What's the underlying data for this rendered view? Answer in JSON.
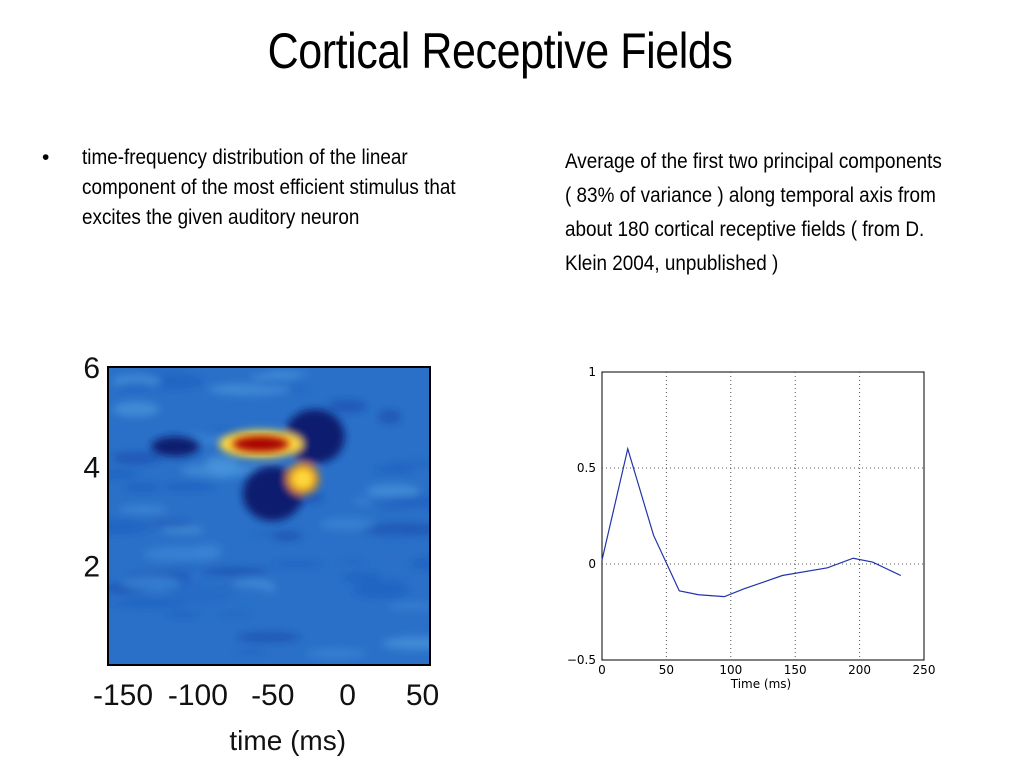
{
  "slide": {
    "title": "Cortical Receptive Fields",
    "bullet_symbol": "•",
    "bullet_text": "time-frequency distribution of the linear component of the most efficient stimulus that excites the given auditory neuron",
    "right_text": "Average of the first two principal components ( 83% of variance ) along temporal axis from about 180 cortical receptive fields ( from D. Klein 2004, unpublished )"
  },
  "chart_data": [
    {
      "type": "heatmap",
      "xlabel": "time (ms)",
      "ylabel": "",
      "x_ticks": [
        "-150",
        "-100",
        "-50",
        "0",
        "50"
      ],
      "y_ticks": [
        "6",
        "4",
        "2"
      ],
      "xlim": [
        -160,
        55
      ],
      "ylim": [
        0,
        6
      ],
      "colormap": [
        "#0a1a6e",
        "#1a55c8",
        "#2f8ad8",
        "#ffd83a",
        "#a80000"
      ],
      "background_color": "#2a70c8",
      "features": [
        {
          "kind": "excitatory-peak",
          "x": -58,
          "y": 4.45,
          "color": "#a80000"
        },
        {
          "kind": "excitatory-secondary",
          "x": -30,
          "y": 3.75,
          "color": "#ffd83a"
        },
        {
          "kind": "inhibitory",
          "x": -22,
          "y": 4.6,
          "color": "#0a1a6e"
        },
        {
          "kind": "inhibitory",
          "x": -50,
          "y": 3.45,
          "color": "#0a1a6e"
        },
        {
          "kind": "inhibitory-weak",
          "x": -115,
          "y": 4.4,
          "color": "#0a1a6e"
        }
      ]
    },
    {
      "type": "line",
      "xlabel": "Time (ms)",
      "ylabel": "",
      "x_ticks": [
        "0",
        "50",
        "100",
        "150",
        "200",
        "250"
      ],
      "y_ticks": [
        "1",
        "0.5",
        "0",
        "−0.5"
      ],
      "xlim": [
        0,
        250
      ],
      "ylim": [
        -0.5,
        1
      ],
      "grid": true,
      "series": [
        {
          "color": "#2233aa",
          "x": [
            0,
            20,
            40,
            60,
            75,
            95,
            110,
            140,
            175,
            195,
            210,
            232
          ],
          "y": [
            0.02,
            0.6,
            0.15,
            -0.14,
            -0.16,
            -0.17,
            -0.13,
            -0.06,
            -0.02,
            0.03,
            0.01,
            -0.06
          ]
        }
      ]
    }
  ]
}
